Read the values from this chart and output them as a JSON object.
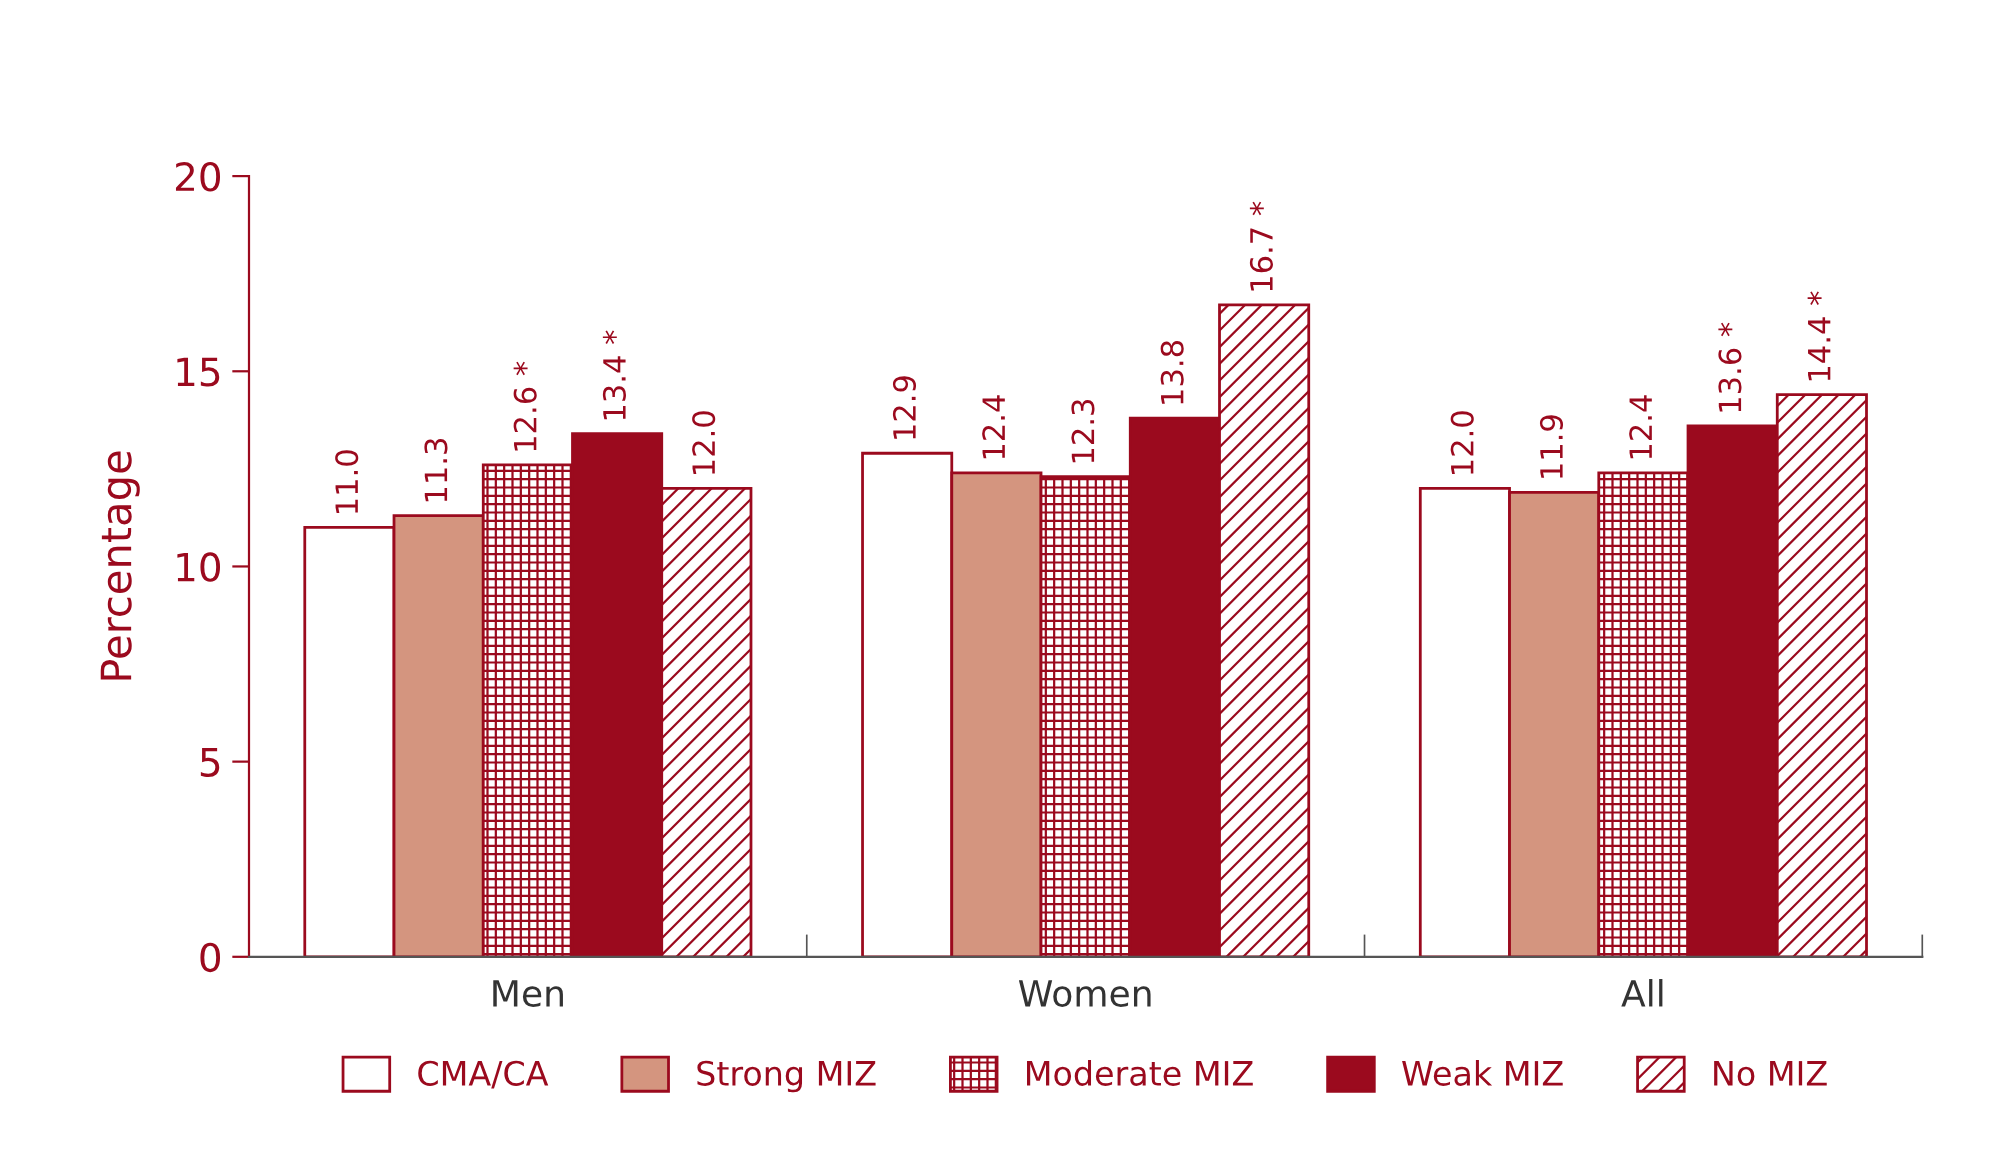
{
  "chart_data": {
    "type": "bar",
    "ylabel": "Percentage",
    "categories": [
      "Men",
      "Women",
      "All"
    ],
    "series": [
      {
        "name": "CMA/CA",
        "color": "#ffffff",
        "values": [
          11.0,
          12.9,
          12.0
        ],
        "value_labels": [
          "11.0",
          "12.9",
          "12.0"
        ]
      },
      {
        "name": "Strong MIZ",
        "color": "#d4957f",
        "values": [
          11.3,
          12.4,
          11.9
        ],
        "value_labels": [
          "11.3",
          "12.4",
          "11.9"
        ]
      },
      {
        "name": "Moderate MIZ",
        "color": "#9b0a1e",
        "values": [
          12.6,
          12.3,
          12.4
        ],
        "value_labels": [
          "12.6 *",
          "12.3",
          "12.4"
        ]
      },
      {
        "name": "Weak MIZ",
        "color": "#9b0a1e",
        "values": [
          13.4,
          13.8,
          13.6
        ],
        "value_labels": [
          "13.4 *",
          "13.8",
          "13.6 *"
        ]
      },
      {
        "name": "No MIZ",
        "color": "#9b0a1e",
        "values": [
          12.0,
          16.7,
          14.4
        ],
        "value_labels": [
          "12.0",
          "16.7 *",
          "14.4 *"
        ]
      }
    ],
    "ylim": [
      0,
      20
    ],
    "yticks": [
      0,
      5,
      10,
      15,
      20
    ],
    "grid": false,
    "legend": "bottom"
  }
}
